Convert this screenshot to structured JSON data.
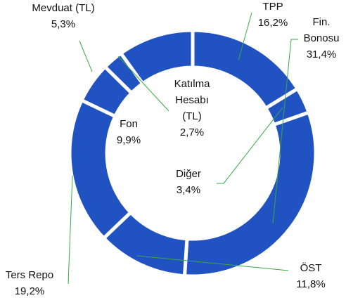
{
  "chart_data": {
    "type": "donut",
    "categories": [
      "TPP",
      "Diğer",
      "Fin. Bonosu",
      "ÖST",
      "Ters Repo",
      "Mevduat (TL)",
      "Katılma Hesabı (TL)",
      "Fon"
    ],
    "values": [
      16.2,
      3.4,
      31.4,
      11.8,
      19.2,
      5.3,
      2.7,
      9.9
    ],
    "value_labels": [
      "16,2%",
      "3,4%",
      "31,4%",
      "11,8%",
      "19,2%",
      "5,3%",
      "2,7%",
      "9,9%"
    ],
    "color": "#2152c2"
  }
}
